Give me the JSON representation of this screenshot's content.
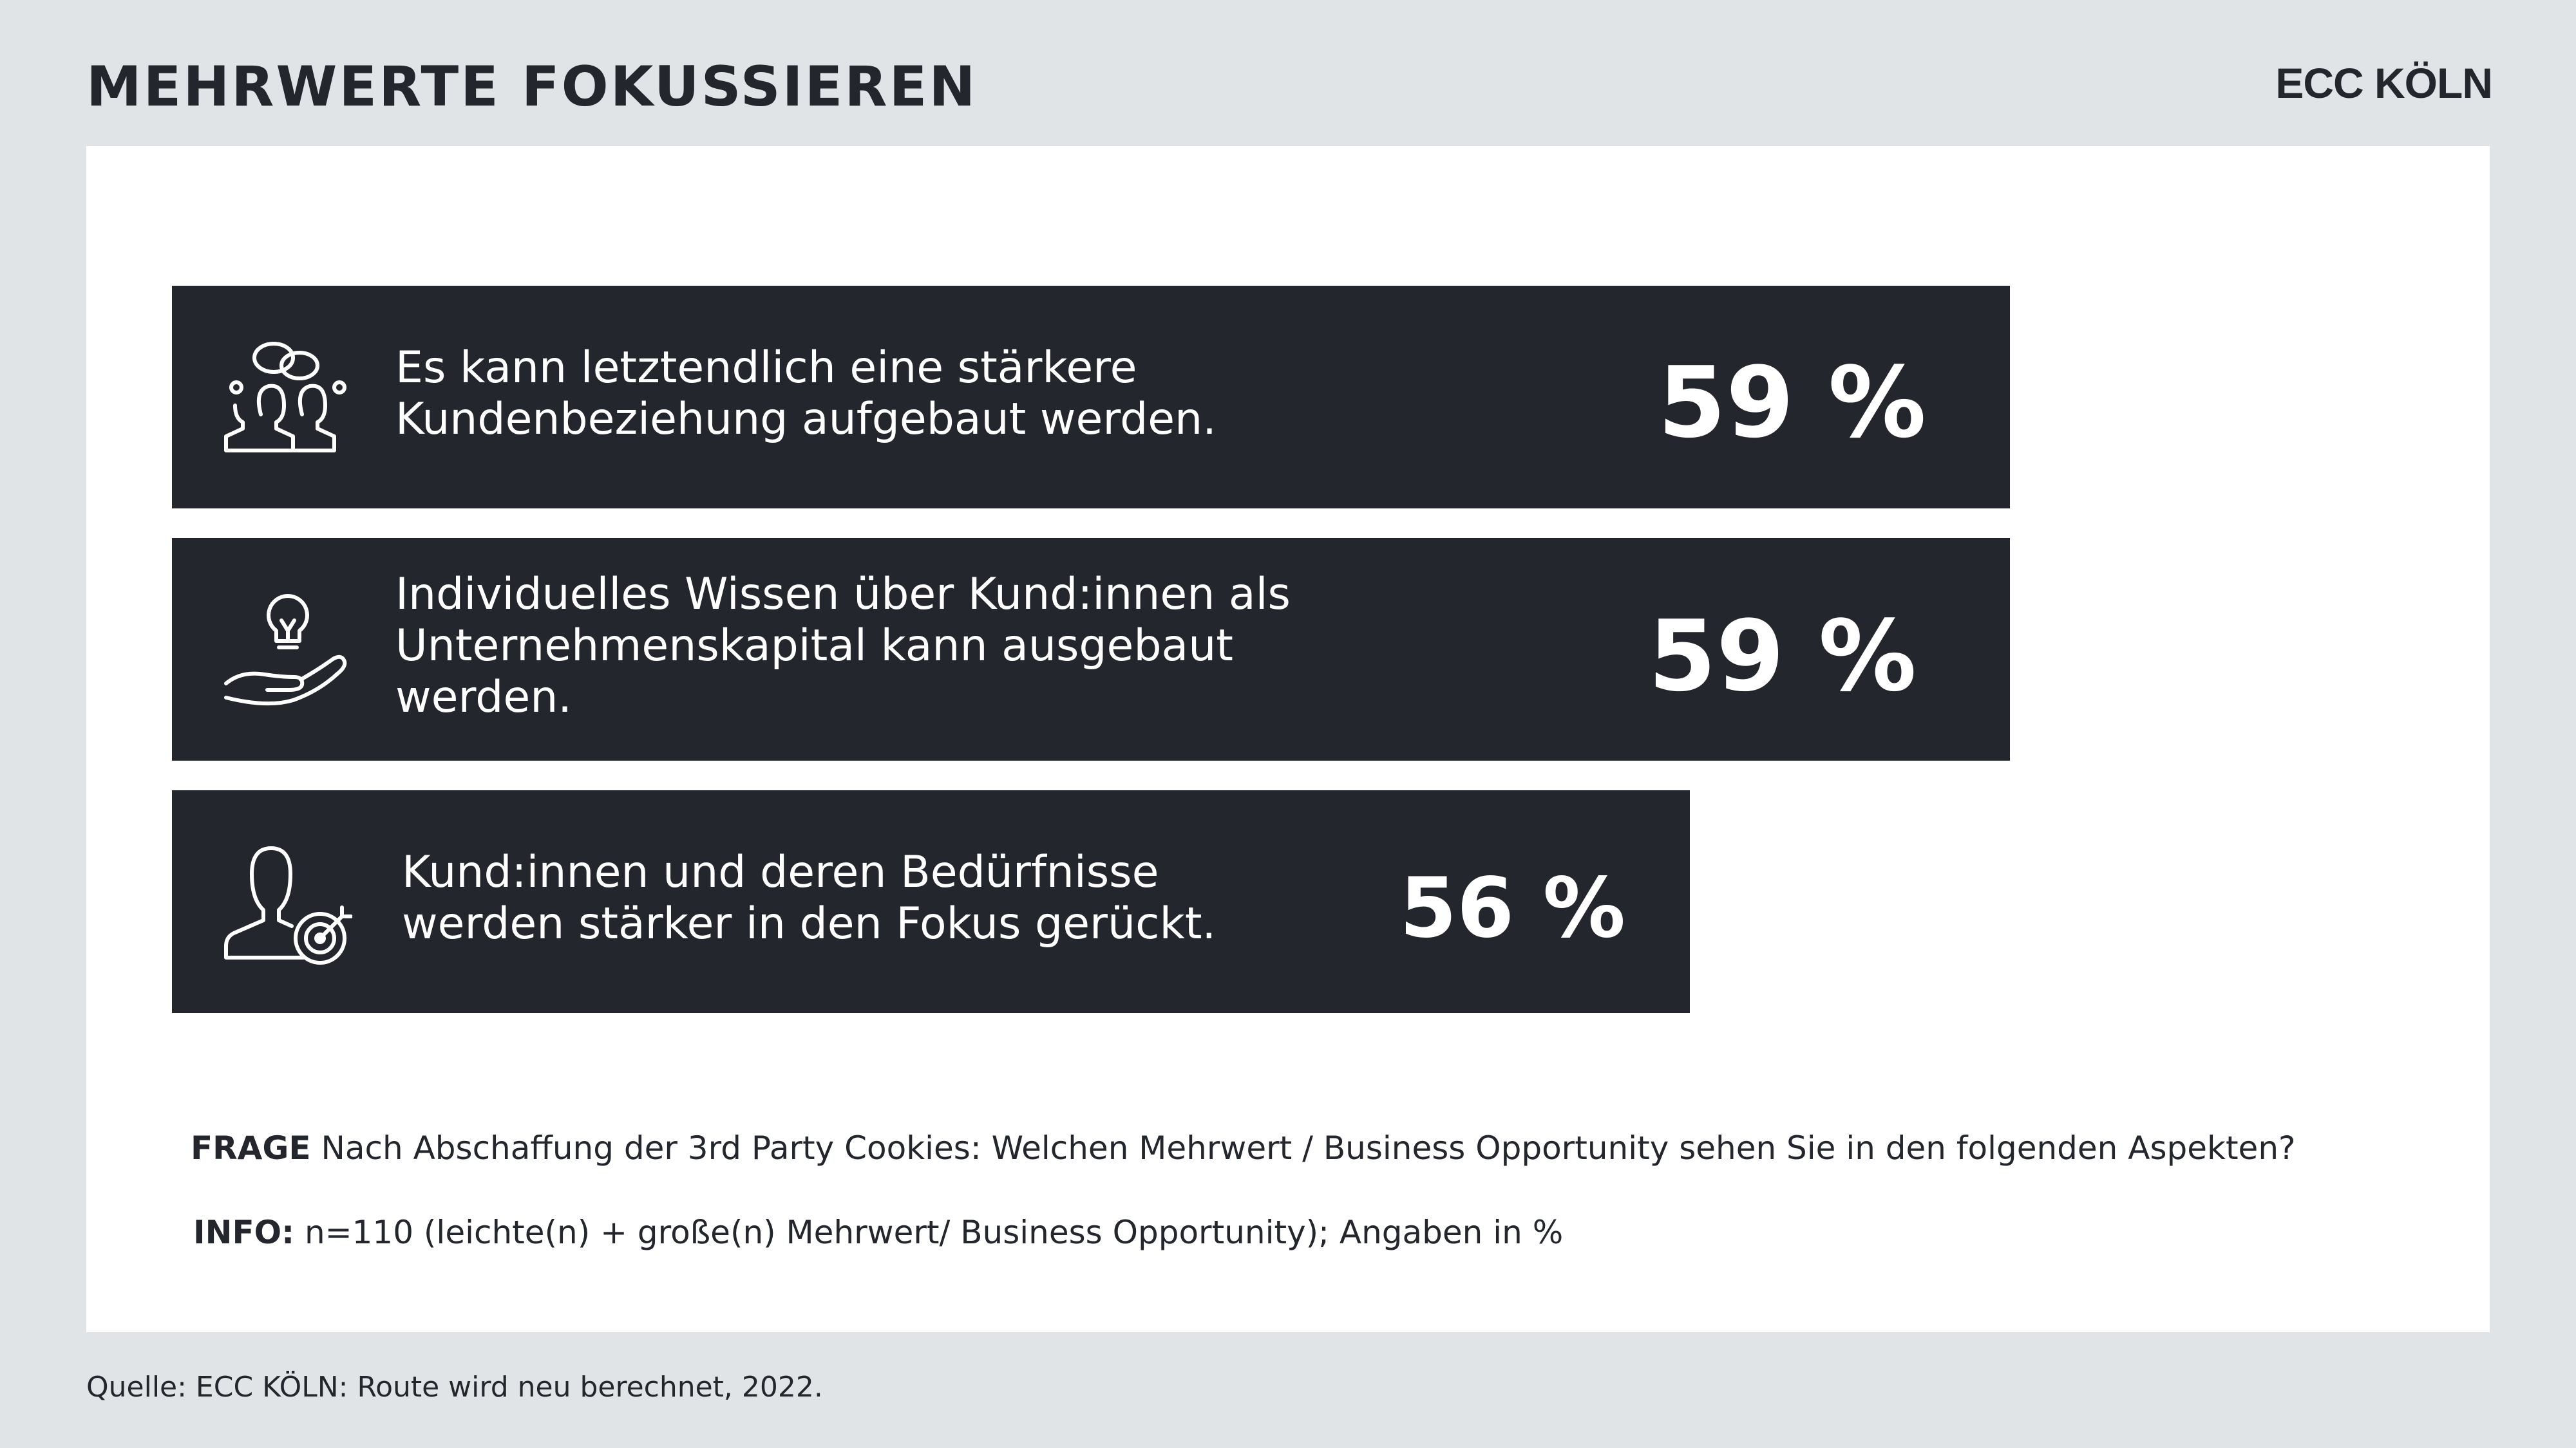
{
  "header": {
    "title": "MEHRWERTE FOKUSSIEREN",
    "logo": "ECC KÖLN"
  },
  "chart_data": {
    "type": "bar",
    "orientation": "horizontal",
    "unit": "%",
    "categories": [
      "Es kann letztendlich eine stärkere Kundenbeziehung aufgebaut werden.",
      "Individuelles Wissen über Kund:innen als Unternehmenskapital kann ausgebaut werden.",
      "Kund:innen und deren Bedürfnisse werden stärker in den Fokus gerückt."
    ],
    "values": [
      59,
      59,
      56
    ],
    "value_labels": [
      "59 %",
      "59 %",
      "56 %"
    ],
    "icons": [
      "speech-bubbles-people-icon",
      "lightbulb-hand-icon",
      "person-target-icon"
    ],
    "colors": {
      "bar": "#24262d",
      "text": "#ffffff"
    }
  },
  "notes": {
    "frage_label": "FRAGE",
    "frage_text": " Nach Abschaffung der 3rd Party Cookies: Welchen Mehrwert / Business Opportunity sehen Sie in den folgenden Aspekten?",
    "info_label": "INFO:",
    "info_text": " n=110 (leichte(n) + große(n) Mehrwert/ Business Opportunity); Angaben in %"
  },
  "footer": {
    "source": "Quelle: ECC KÖLN: Route wird neu berechnet, 2022."
  },
  "colors": {
    "background": "#e1e4e7",
    "panel": "#ffffff",
    "dark": "#24262d"
  }
}
